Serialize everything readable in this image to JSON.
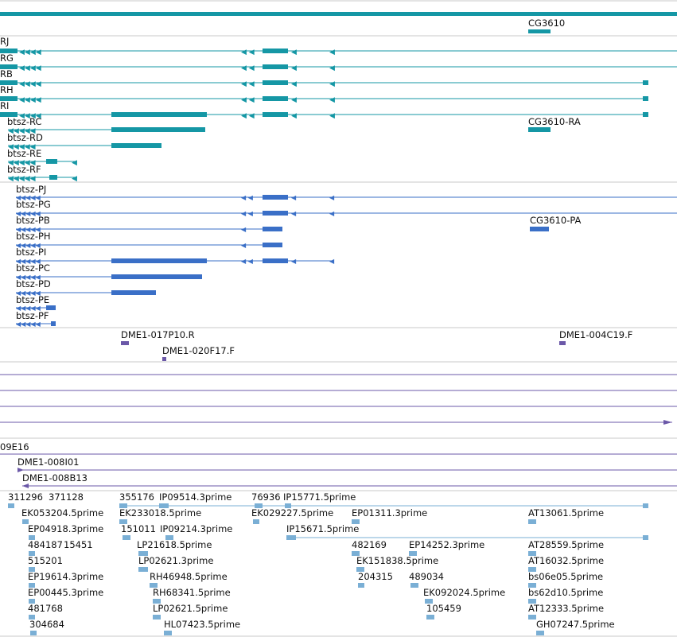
{
  "colors": {
    "teal": "#1597a5",
    "blue": "#3a6fc7",
    "purple": "#6b58a8",
    "lightblue": "#7aafd5",
    "separator": "#c8c8c8"
  },
  "genes_track": {
    "gene_label": "CG3610",
    "transcripts": [
      {
        "name": "RJ"
      },
      {
        "name": "RG"
      },
      {
        "name": "RB"
      },
      {
        "name": "RH"
      },
      {
        "name": "RI"
      },
      {
        "name": "btsz-RC"
      },
      {
        "name": "btsz-RD"
      },
      {
        "name": "btsz-RE"
      },
      {
        "name": "btsz-RF"
      }
    ],
    "other_transcript": "CG3610-RA"
  },
  "cds_track": {
    "transcripts": [
      {
        "name": "btsz-PJ"
      },
      {
        "name": "btsz-PG"
      },
      {
        "name": "btsz-PB"
      },
      {
        "name": "btsz-PH"
      },
      {
        "name": "btsz-PI"
      },
      {
        "name": "btsz-PC"
      },
      {
        "name": "btsz-PD"
      },
      {
        "name": "btsz-PE"
      },
      {
        "name": "btsz-PF"
      }
    ],
    "other_protein": "CG3610-PA"
  },
  "clone_ends_track": {
    "items": [
      "DME1-017P10.R",
      "DME1-020F17.F",
      "DME1-004C19.F"
    ]
  },
  "bac_track": {
    "items": [
      "09E16",
      "DME1-008I01",
      "DME1-008B13"
    ]
  },
  "est_track": {
    "items": [
      "311296",
      "371128",
      "355176",
      "IP09514.3prime",
      "76936",
      "IP15771.5prime",
      "EK053204.5prime",
      "EK233018.5prime",
      "EK029227.5prime",
      "EP01311.3prime",
      "AT13061.5prime",
      "EP04918.3prime",
      "151011",
      "IP09214.3prime",
      "IP15671.5prime",
      "484187",
      "15451",
      "LP21618.5prime",
      "482169",
      "EP14252.3prime",
      "AT28559.5prime",
      "515201",
      "LP02621.3prime",
      "EK151838.5prime",
      "AT16032.5prime",
      "EP19614.3prime",
      "RH46948.5prime",
      "204315",
      "489034",
      "bs06e05.5prime",
      "EP00445.3prime",
      "RH68341.5prime",
      "EK092024.5prime",
      "bs62d10.5prime",
      "481768",
      "LP02621.5prime",
      "105459",
      "AT12333.5prime",
      "304684",
      "HL07423.5prime",
      "GH07247.5prime"
    ]
  }
}
